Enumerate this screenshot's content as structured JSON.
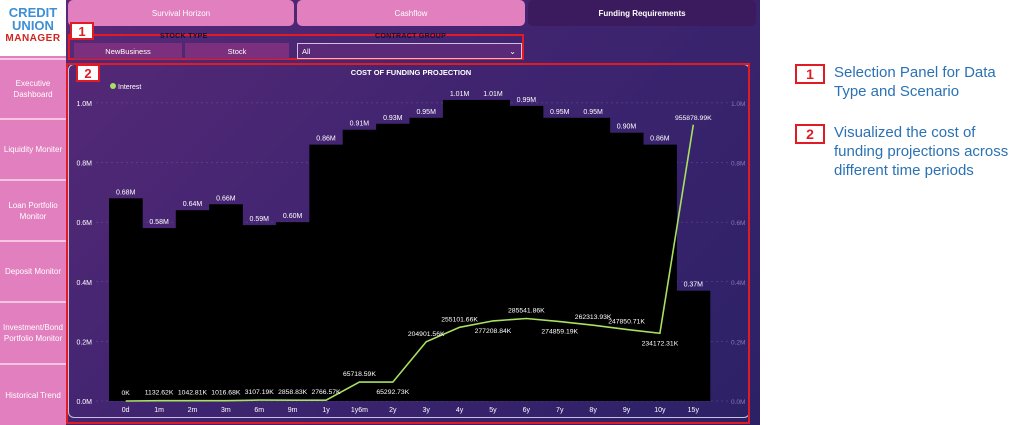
{
  "logo": {
    "line1": "CREDIT",
    "line2": "UNION",
    "line3": "MANAGER"
  },
  "sidebar": {
    "items": [
      {
        "label": "Executive Dashboard"
      },
      {
        "label": "Liquidity Moniter"
      },
      {
        "label": "Loan Portfolio Monitor"
      },
      {
        "label": "Deposit Monitor"
      },
      {
        "label": "Investment/Bond Portfolio Monitor"
      },
      {
        "label": "Historical Trend"
      }
    ]
  },
  "tabs": [
    {
      "label": "Survival Horizon"
    },
    {
      "label": "Cashflow"
    },
    {
      "label": "Funding Requirements"
    }
  ],
  "slicers": {
    "stock_type": {
      "title": "STOCK TYPE",
      "options": [
        "NewBusiness",
        "Stock"
      ]
    },
    "contract_group": {
      "title": "CONTRACT GROUP",
      "selected": "All"
    }
  },
  "highlight_labels": {
    "one": "1",
    "two": "2"
  },
  "chart_data": {
    "type": "bar",
    "title": "COST OF FUNDING PROJECTION",
    "legend": [
      "Interest"
    ],
    "legend_position": "top-left",
    "categories": [
      "0d",
      "1m",
      "2m",
      "3m",
      "6m",
      "9m",
      "1y",
      "1y6m",
      "2y",
      "3y",
      "4y",
      "5y",
      "6y",
      "7y",
      "8y",
      "9y",
      "10y",
      "15y"
    ],
    "bar_series": {
      "values": [
        0.68,
        0.58,
        0.64,
        0.66,
        0.59,
        0.6,
        0.86,
        0.91,
        0.93,
        0.95,
        1.01,
        1.01,
        0.99,
        0.95,
        0.95,
        0.9,
        0.86,
        0.37
      ],
      "labels": [
        "0.68M",
        "0.58M",
        "0.64M",
        "0.66M",
        "0.59M",
        "0.60M",
        "0.86M",
        "0.91M",
        "0.93M",
        "0.95M",
        "1.01M",
        "1.01M",
        "0.99M",
        "0.95M",
        "0.95M",
        "0.90M",
        "0.86M",
        "0.37M"
      ],
      "color": "#000000"
    },
    "line_series": {
      "name": "Interest",
      "values": [
        0,
        1132.62,
        1042.81,
        1016.68,
        3107.19,
        2858.83,
        2766.57,
        65718.59,
        65292.73,
        204901.56,
        255101.66,
        277208.84,
        285541.86,
        274859.19,
        262313.93,
        247850.71,
        234172.31,
        955878.99
      ],
      "labels": [
        "0K",
        "1132.62K",
        "1042.81K",
        "1016.68K",
        "3107.19K",
        "2858.83K",
        "2766.57K",
        "65718.59K",
        "65292.73K",
        "204901.56K",
        "255101.66K",
        "277208.84K",
        "285541.86K",
        "274859.19K",
        "262313.93K",
        "247850.71K",
        "234172.31K",
        "955878.99K"
      ],
      "color": "#a8e05f"
    },
    "y_left": {
      "ticks": [
        "0.0M",
        "0.2M",
        "0.4M",
        "0.6M",
        "0.8M",
        "1.0M"
      ],
      "range": [
        0,
        1.05
      ]
    },
    "y_right": {
      "ticks": [
        "0.0M",
        "0.2M",
        "0.4M",
        "0.6M",
        "0.8M",
        "1.0M"
      ],
      "range": [
        0,
        1.05
      ]
    },
    "grid": true
  },
  "annotations": [
    {
      "number": "1",
      "text": "Selection Panel for Data Type and Scenario"
    },
    {
      "number": "2",
      "text": "Visualized the cost of funding projections across different time periods"
    }
  ]
}
